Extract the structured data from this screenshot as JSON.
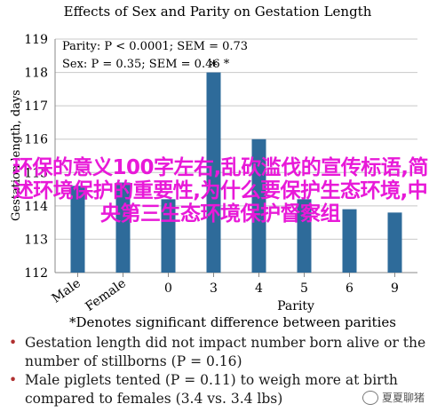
{
  "chart_data": {
    "type": "bar",
    "title": "Effects of Sex and Parity on Gestation Length",
    "ylabel": "Gestation length, days",
    "xlabel": "Parity",
    "ylim": [
      112,
      119
    ],
    "yticks": [
      112,
      113,
      114,
      115,
      116,
      117,
      118,
      119
    ],
    "categories": [
      "Male",
      "Female",
      "0",
      "3",
      "4",
      "5",
      "6",
      "9"
    ],
    "values": [
      114.6,
      114.7,
      114.2,
      118.0,
      116.0,
      114.2,
      113.9,
      113.8
    ],
    "grid": true,
    "annotations": {
      "parity_stat": "Parity: P < 0.0001; SEM = 0.73",
      "sex_stat": "Sex: P = 0.35; SEM = 0.46 *"
    },
    "significance_marker": "*",
    "bar_color": "#2e6b9a"
  },
  "overlay_text": "环保的意义100字左右,乱砍滥伐的宣传标语,简述环境保护的重要性,为什么要保护生态环境,中央第三生态环境保护督察组",
  "footnote": "*Denotes significant difference between parities",
  "bullets": [
    "Gestation length did not impact number born alive or the number of stillborns (P = 0.16)",
    "Male piglets tented (P = 0.11) to weigh more at birth compared to females (3.4 vs. 3.4 lbs)"
  ],
  "watermark": "夏夏聊猪"
}
